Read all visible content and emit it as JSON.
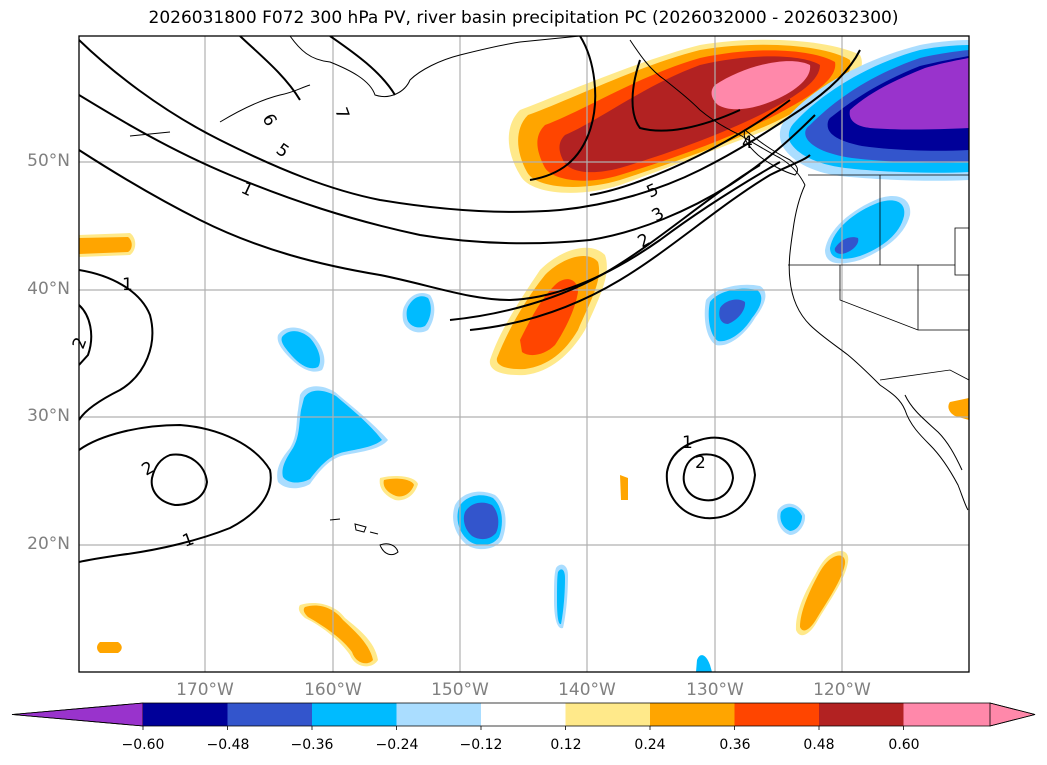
{
  "title": "2026031800 F072 300 hPa PV, river basin precipitation PC (2026032000 - 2026032300)",
  "latitude_labels": [
    "50°N",
    "40°N",
    "30°N",
    "20°N"
  ],
  "longitude_labels": [
    "170°W",
    "160°W",
    "150°W",
    "140°W",
    "130°W",
    "120°W"
  ],
  "contour_labels": [
    "1",
    "1",
    "1",
    "1",
    "2",
    "2",
    "2",
    "2",
    "3",
    "4",
    "5",
    "5",
    "6",
    "7"
  ],
  "colorbar": {
    "ticks": [
      "−0.60",
      "−0.48",
      "−0.36",
      "−0.24",
      "−0.12",
      "0.12",
      "0.24",
      "0.36",
      "0.48",
      "0.60"
    ],
    "colors": [
      "#9933cc",
      "#000099",
      "#3355cc",
      "#00bbff",
      "#aaddff",
      "#ffffff",
      "#ffe98a",
      "#ffa500",
      "#ff4500",
      "#b22222",
      "#ff88aa",
      "#ff88aa"
    ]
  },
  "colors": {
    "grid": "#b0b0b0",
    "label_gray": "#808080"
  }
}
